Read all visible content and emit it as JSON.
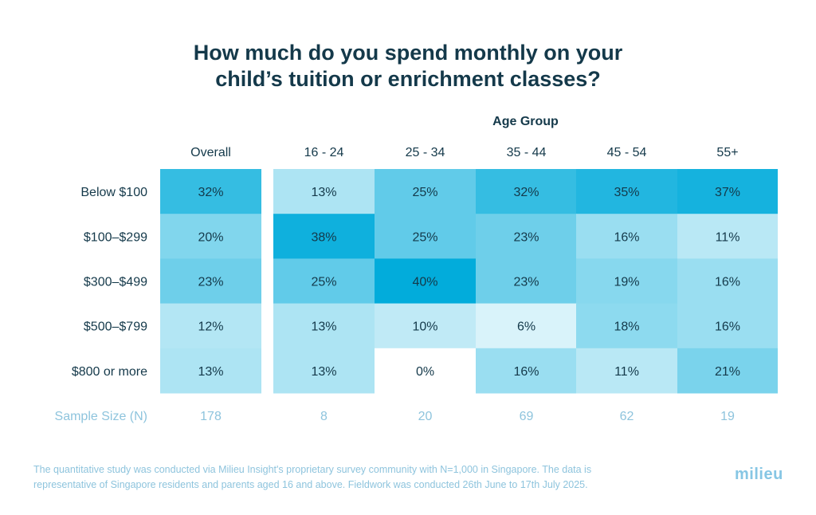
{
  "title_lines": [
    "How much do you spend monthly on your",
    "child’s tuition or enrichment classes?"
  ],
  "chart_data": {
    "type": "heatmap",
    "group_label": "Age Group",
    "columns": [
      "Overall",
      "16 - 24",
      "25 - 34",
      "35 - 44",
      "45 - 54",
      "55+"
    ],
    "rows": [
      "Below $100",
      "$100–$299",
      "$300–$499",
      "$500–$799",
      "$800 or more"
    ],
    "values": [
      [
        32,
        13,
        25,
        32,
        35,
        37
      ],
      [
        20,
        38,
        25,
        23,
        16,
        11
      ],
      [
        23,
        25,
        40,
        23,
        19,
        16
      ],
      [
        12,
        13,
        10,
        6,
        18,
        16
      ],
      [
        13,
        13,
        0,
        16,
        11,
        21
      ]
    ],
    "value_suffix": "%",
    "sample_size_label": "Sample Size (N)",
    "sample_sizes": [
      "178",
      "8",
      "20",
      "69",
      "62",
      "19"
    ],
    "colors": {
      "low": "#ffffff",
      "high": "#02acdb",
      "text": "#14394a",
      "muted": "#8ec4dd"
    }
  },
  "footnote_lines": [
    "The quantitative study was conducted via Milieu Insight's proprietary survey community with N=1,000 in Singapore. The data is",
    "representative of Singapore residents and parents aged 16 and above. Fieldwork was conducted 26th June to 17th July 2025."
  ],
  "logo": "milieu"
}
